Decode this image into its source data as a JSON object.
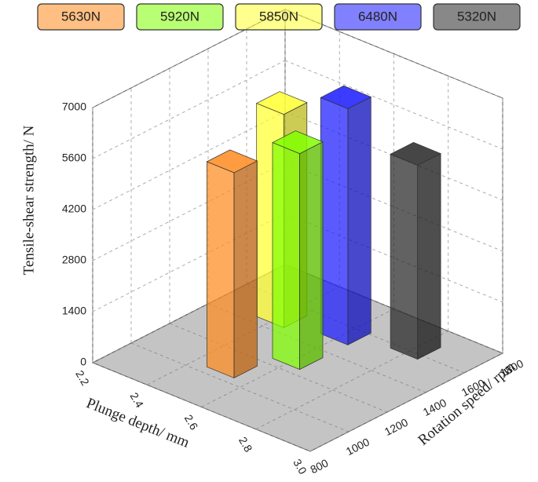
{
  "chart_data": {
    "type": "bar3d",
    "y_label": "Tensile-shear strength/ N",
    "x_label": "Plunge depth/ mm",
    "z_label": "Rotation speed/ rpm",
    "ylim": [
      0,
      7000
    ],
    "yticks": [
      0,
      1400,
      2800,
      4200,
      5600,
      7000
    ],
    "xlim": [
      2.2,
      3.0
    ],
    "xticks": [
      2.2,
      2.4,
      2.6,
      2.8,
      {
        "value": 3.0,
        "label": "3.0"
      }
    ],
    "zlim": [
      800,
      1800
    ],
    "zticks": [
      800,
      1000,
      1200,
      1400,
      1600,
      1800
    ],
    "grid": true,
    "series": [
      {
        "name": "5630N",
        "color": "#ff8a1e",
        "x": 2.5,
        "z": 1100,
        "value": 5630
      },
      {
        "name": "5920N",
        "color": "#80ff00",
        "x": 2.6,
        "z": 1300,
        "value": 5920
      },
      {
        "name": "5850N",
        "color": "#ffff30",
        "x": 2.4,
        "z": 1500,
        "value": 5850
      },
      {
        "name": "6480N",
        "color": "#1a1aff",
        "x": 2.6,
        "z": 1550,
        "value": 6480
      },
      {
        "name": "5320N",
        "color": "#262626",
        "x": 2.8,
        "z": 1630,
        "value": 5320
      }
    ]
  }
}
